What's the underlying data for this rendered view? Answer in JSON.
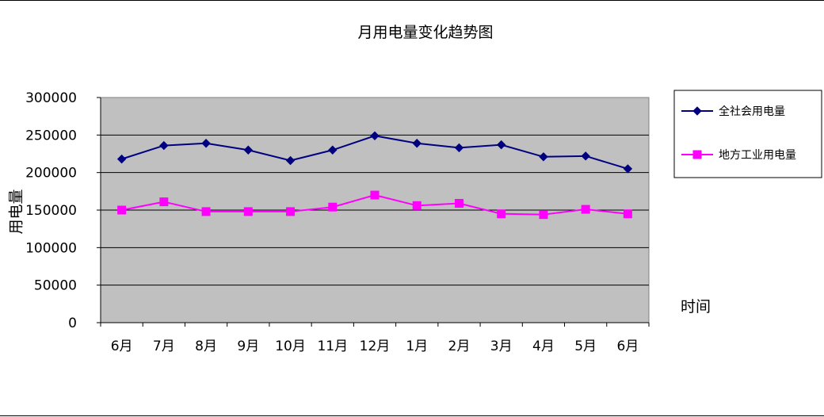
{
  "chart_data": {
    "type": "line",
    "title": "月用电量变化趋势图",
    "xlabel": "时间",
    "ylabel": "用电量",
    "categories": [
      "6月",
      "7月",
      "8月",
      "9月",
      "10月",
      "11月",
      "12月",
      "1月",
      "2月",
      "3月",
      "4月",
      "5月",
      "6月"
    ],
    "ylim": [
      0,
      300000
    ],
    "yticks": [
      "0",
      "50000",
      "100000",
      "150000",
      "200000",
      "250000",
      "300000"
    ],
    "grid": true,
    "legend_position": "right",
    "series": [
      {
        "name": "全社会用电量",
        "color": "#000080",
        "marker": "diamond",
        "values": [
          218000,
          236000,
          239000,
          230000,
          216000,
          230000,
          249000,
          239000,
          233000,
          237000,
          221000,
          222000,
          205000
        ]
      },
      {
        "name": "地方工业用电量",
        "color": "#FF00FF",
        "marker": "square",
        "values": [
          150000,
          161000,
          148000,
          148000,
          148000,
          154000,
          170000,
          156000,
          159000,
          145000,
          144000,
          151000,
          145000
        ]
      }
    ],
    "colors": {
      "plot_background": "#C0C0C0",
      "gridline": "#000000"
    }
  }
}
